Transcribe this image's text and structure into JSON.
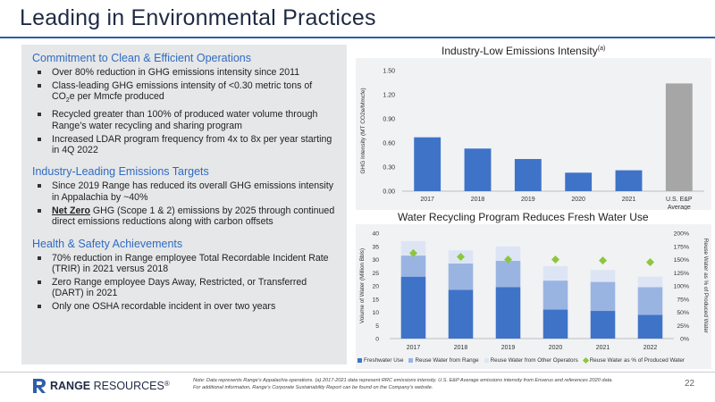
{
  "slide": {
    "title": "Leading in Environmental Practices",
    "page_number": "22"
  },
  "left": {
    "sections": [
      {
        "heading": "Commitment to Clean & Efficient Operations",
        "bullets": [
          {
            "text": "Over 80% reduction in GHG emissions intensity since 2011"
          },
          {
            "pre": "Class-leading GHG emissions intensity of <0.30 metric tons of CO",
            "sub": "2",
            "post": "e per Mmcfe produced"
          },
          {
            "text": "Recycled greater than 100% of produced water volume through Range’s water recycling and sharing program"
          },
          {
            "text": "Increased LDAR program frequency from 4x to 8x per year starting in 4Q 2022"
          }
        ]
      },
      {
        "heading": "Industry-Leading Emissions Targets",
        "bullets": [
          {
            "text": "Since 2019 Range has reduced its overall GHG emissions intensity in Appalachia by ~40%"
          },
          {
            "bold": "Net Zero",
            "post": " GHG (Scope 1 & 2) emissions by 2025 through continued direct emissions reductions along with carbon offsets"
          }
        ]
      },
      {
        "heading": "Health & Safety Achievements",
        "bullets": [
          {
            "text": "70% reduction in Range employee Total Recordable Incident Rate (TRIR) in 2021 versus 2018"
          },
          {
            "text": "Zero Range employee Days Away, Restricted, or Transferred (DART) in 2021"
          },
          {
            "text": "Only one OSHA recordable incident in over two years"
          }
        ]
      }
    ]
  },
  "chart1_title": {
    "main": "Industry-Low Emissions Intensity",
    "sup": "(a)"
  },
  "chart2_title": {
    "main": "Water Recycling Program Reduces Fresh Water Use"
  },
  "chart_data": [
    {
      "type": "bar",
      "title": "Industry-Low Emissions Intensity(a)",
      "categories": [
        "2017",
        "2018",
        "2019",
        "2020",
        "2021",
        "U.S. E&P Average"
      ],
      "category_lines": [
        [
          "2017"
        ],
        [
          "2018"
        ],
        [
          "2019"
        ],
        [
          "2020"
        ],
        [
          "2021"
        ],
        [
          "U.S. E&P",
          "Average"
        ]
      ],
      "values": [
        0.67,
        0.53,
        0.4,
        0.23,
        0.26,
        1.34
      ],
      "colors": [
        "#3f73c8",
        "#3f73c8",
        "#3f73c8",
        "#3f73c8",
        "#3f73c8",
        "#a6a6a6"
      ],
      "ylabel": "GHG Intensity (MT CO2e/Mmcfe)",
      "yticks": [
        "0.00",
        "0.30",
        "0.60",
        "0.90",
        "1.20",
        "1.50"
      ],
      "ylim": [
        0,
        1.5
      ],
      "grid": false
    },
    {
      "type": "bar",
      "stacked": true,
      "title": "Water Recycling Program Reduces Fresh Water Use",
      "categories": [
        "2017",
        "2018",
        "2019",
        "2020",
        "2021",
        "2022"
      ],
      "series": [
        {
          "name": "Freshwater Use",
          "color": "#3f73c8",
          "values": [
            23.5,
            18.5,
            19.5,
            11.0,
            10.5,
            9.0
          ]
        },
        {
          "name": "Reuse Water from Range",
          "color": "#9ab4e2",
          "values": [
            8.0,
            10.0,
            10.0,
            11.0,
            11.0,
            10.5
          ]
        },
        {
          "name": "Reuse Water from Other Operators",
          "color": "#dde5f5",
          "values": [
            5.5,
            5.0,
            5.5,
            5.5,
            4.5,
            4.0
          ]
        }
      ],
      "line_series": {
        "name": "Reuse Water as % of Produced Water",
        "color": "#8cc63f",
        "marker": "diamond",
        "values": [
          162,
          155,
          150,
          150,
          148,
          145
        ]
      },
      "ylabel": "Volume of Water (Million Bbls)",
      "y2label": "Reuse Water as % of Produced Water",
      "yticks": [
        "0",
        "5",
        "10",
        "15",
        "20",
        "25",
        "30",
        "35",
        "40"
      ],
      "ylim": [
        0,
        40
      ],
      "y2ticks": [
        "0%",
        "25%",
        "50%",
        "75%",
        "100%",
        "125%",
        "150%",
        "175%",
        "200%"
      ],
      "y2lim": [
        0,
        200
      ],
      "legend_position": "bottom"
    }
  ],
  "footer": {
    "logo_bold": "RANGE",
    "logo_rest": " RESOURCES",
    "logo_mark": "®",
    "note_line1": "Note: Data represents Range’s Appalachia operations. (a) 2017-2021 data represent RRC emissions intensity. U.S. E&P Average emissions intensity from Enverus and references 2020 data.",
    "note_line2": "For additional information, Range’s Corporate Sustainability Report can be found on the Company’s website."
  }
}
